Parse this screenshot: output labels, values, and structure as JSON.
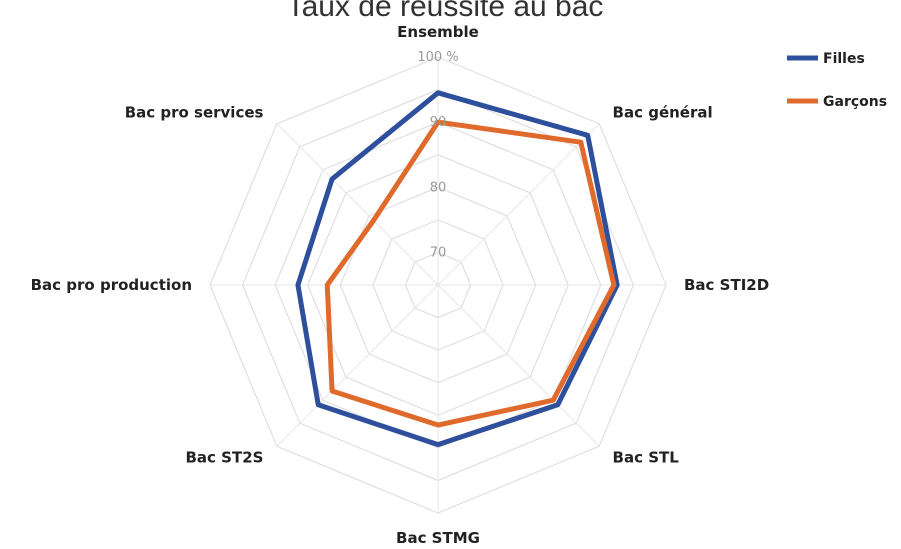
{
  "chart_data": {
    "type": "radar",
    "title": "Taux de réussite au bac",
    "axes": [
      "Ensemble",
      "Bac général",
      "Bac STI2D",
      "Bac STL",
      "Bac STMG",
      "Bac ST2S",
      "Bac pro production",
      "Bac pro services"
    ],
    "rlim": [
      65,
      100
    ],
    "ticks": [
      {
        "value": 70,
        "label": "70"
      },
      {
        "value": 80,
        "label": "80"
      },
      {
        "value": 90,
        "label": "90"
      },
      {
        "value": 100,
        "label": "100 %"
      }
    ],
    "grid": true,
    "legend_position": "top-right",
    "series": [
      {
        "name": "Filles",
        "color": "#2e4f9c",
        "values": [
          94.5,
          97.5,
          92.5,
          91,
          89.5,
          91,
          86.5,
          88
        ]
      },
      {
        "name": "Garçons",
        "color": "#e06a2c",
        "values": [
          90,
          96,
          92,
          90,
          86.5,
          88,
          82,
          79
        ]
      }
    ]
  }
}
